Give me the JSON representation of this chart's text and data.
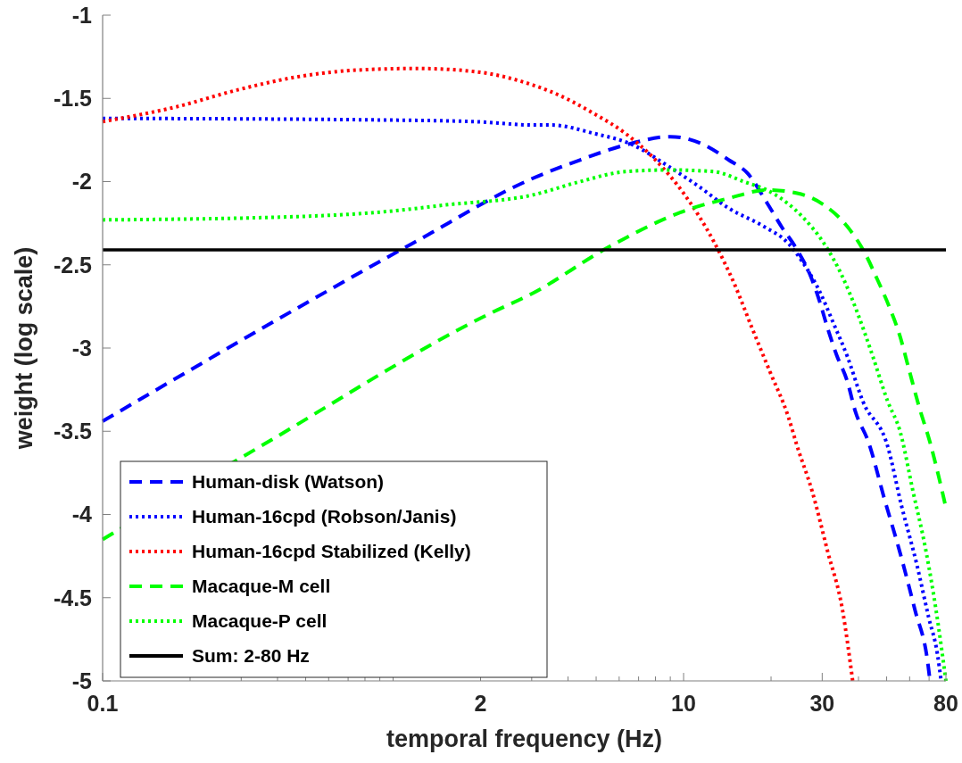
{
  "chart_data": {
    "type": "line",
    "xlabel": "temporal frequency (Hz)",
    "ylabel": "weight (log scale)",
    "log": "x",
    "grid": false,
    "legend": "bottom left",
    "xlim": [
      0.1,
      80
    ],
    "ylim": [
      -5,
      -1
    ],
    "xticks": [
      0.1,
      {
        "value": 0.2,
        "label": null
      },
      {
        "value": 0.3,
        "label": null
      },
      {
        "value": 0.4,
        "label": null
      },
      {
        "value": 0.5,
        "label": null
      },
      {
        "value": 0.6,
        "label": null
      },
      {
        "value": 0.7,
        "label": null
      },
      {
        "value": 0.8,
        "label": null
      },
      {
        "value": 0.9,
        "label": null
      },
      {
        "value": 1,
        "label": null
      },
      2,
      {
        "value": 3,
        "label": null
      },
      {
        "value": 4,
        "label": null
      },
      {
        "value": 5,
        "label": null
      },
      {
        "value": 6,
        "label": null
      },
      {
        "value": 7,
        "label": null
      },
      {
        "value": 8,
        "label": null
      },
      {
        "value": 9,
        "label": null
      },
      10,
      {
        "value": 20,
        "label": null
      },
      30,
      {
        "value": 40,
        "label": null
      },
      {
        "value": 50,
        "label": null
      },
      {
        "value": 60,
        "label": null
      },
      {
        "value": 70,
        "label": null
      },
      80
    ],
    "yticks": [
      -5,
      -4.5,
      -4,
      -3.5,
      -3,
      -2.5,
      -2,
      -1.5,
      -1
    ],
    "series": [
      {
        "name": "Human-disk (Watson)",
        "color": "#0000ff",
        "line_style": "dashed",
        "x": [
          0.1,
          1.17,
          3.03,
          4.4,
          6.3,
          9,
          11.8,
          14.3,
          16.6,
          19.4,
          21.9,
          24.2,
          27.4,
          29.4,
          31.3,
          33.6,
          36.6,
          39,
          43.4,
          49,
          55.6,
          62.5,
          69.5,
          70.5
        ],
        "values": [
          -3.44,
          -2.37,
          -1.98,
          -1.87,
          -1.78,
          -1.73,
          -1.78,
          -1.87,
          -1.95,
          -2.13,
          -2.28,
          -2.39,
          -2.57,
          -2.72,
          -2.88,
          -3.04,
          -3.2,
          -3.38,
          -3.57,
          -3.9,
          -4.23,
          -4.57,
          -4.91,
          -5
        ]
      },
      {
        "name": "Human-16cpd (Robson/Janis)",
        "color": "#0000ff",
        "line_style": "dotted",
        "x": [
          0.1,
          0.95,
          1.93,
          3.03,
          3.5,
          4.9,
          6.7,
          8.9,
          11.3,
          14.3,
          18.9,
          22.9,
          25.6,
          29.4,
          32.6,
          36.6,
          41.4,
          50.4,
          56.3,
          63.5,
          69.8,
          74.8,
          77
        ],
        "values": [
          -1.62,
          -1.63,
          -1.64,
          -1.66,
          -1.66,
          -1.71,
          -1.78,
          -1.91,
          -2.03,
          -2.16,
          -2.27,
          -2.37,
          -2.48,
          -2.66,
          -2.84,
          -3.05,
          -3.32,
          -3.59,
          -3.95,
          -4.3,
          -4.62,
          -4.84,
          -5
        ]
      },
      {
        "name": "Human-16cpd Stabilized (Kelly)",
        "color": "#ff0000",
        "line_style": "dotted",
        "x": [
          0.1,
          0.18,
          0.29,
          0.47,
          0.75,
          1.2,
          1.93,
          3.03,
          3.5,
          4.9,
          6.3,
          7.9,
          10,
          12.7,
          15,
          17.2,
          19.8,
          22.9,
          24.6,
          27.7,
          31.3,
          35.2,
          38.2
        ],
        "values": [
          -1.64,
          -1.55,
          -1.45,
          -1.37,
          -1.33,
          -1.32,
          -1.34,
          -1.42,
          -1.46,
          -1.59,
          -1.71,
          -1.86,
          -2.07,
          -2.36,
          -2.62,
          -2.88,
          -3.14,
          -3.41,
          -3.59,
          -3.86,
          -4.22,
          -4.57,
          -5
        ]
      },
      {
        "name": "Macaque-M cell",
        "color": "#00ff00",
        "line_style": "dashed",
        "x": [
          0.1,
          0.35,
          2.17,
          3.03,
          5.56,
          10.3,
          14.3,
          19.4,
          24.6,
          30.4,
          36.6,
          42.1,
          46.5,
          51,
          55.6,
          59.3,
          64.6,
          70.6,
          75.5,
          80
        ],
        "values": [
          -4.15,
          -3.59,
          -2.79,
          -2.67,
          -2.39,
          -2.17,
          -2.1,
          -2.05,
          -2.07,
          -2.14,
          -2.27,
          -2.43,
          -2.59,
          -2.75,
          -2.93,
          -3.11,
          -3.35,
          -3.57,
          -3.77,
          -3.96
        ]
      },
      {
        "name": "Macaque-P cell",
        "color": "#00ff00",
        "line_style": "dotted",
        "x": [
          0.1,
          0.47,
          0.95,
          1.52,
          3.03,
          4.4,
          6.3,
          8.9,
          12.7,
          16.1,
          20.3,
          25.6,
          30.4,
          35.2,
          39.7,
          44.8,
          50.4,
          55.6,
          61.6,
          68.3,
          73.9,
          80
        ],
        "values": [
          -2.23,
          -2.21,
          -2.18,
          -2.14,
          -2.08,
          -2,
          -1.94,
          -1.93,
          -1.94,
          -2,
          -2.07,
          -2.21,
          -2.37,
          -2.57,
          -2.79,
          -3.05,
          -3.32,
          -3.5,
          -3.86,
          -4.22,
          -4.57,
          -5
        ]
      },
      {
        "name": "Sum: 2-80 Hz",
        "color": "#000000",
        "line_style": "solid",
        "x": [
          0.1,
          80
        ],
        "values": [
          -2.41,
          -2.41
        ]
      }
    ]
  }
}
